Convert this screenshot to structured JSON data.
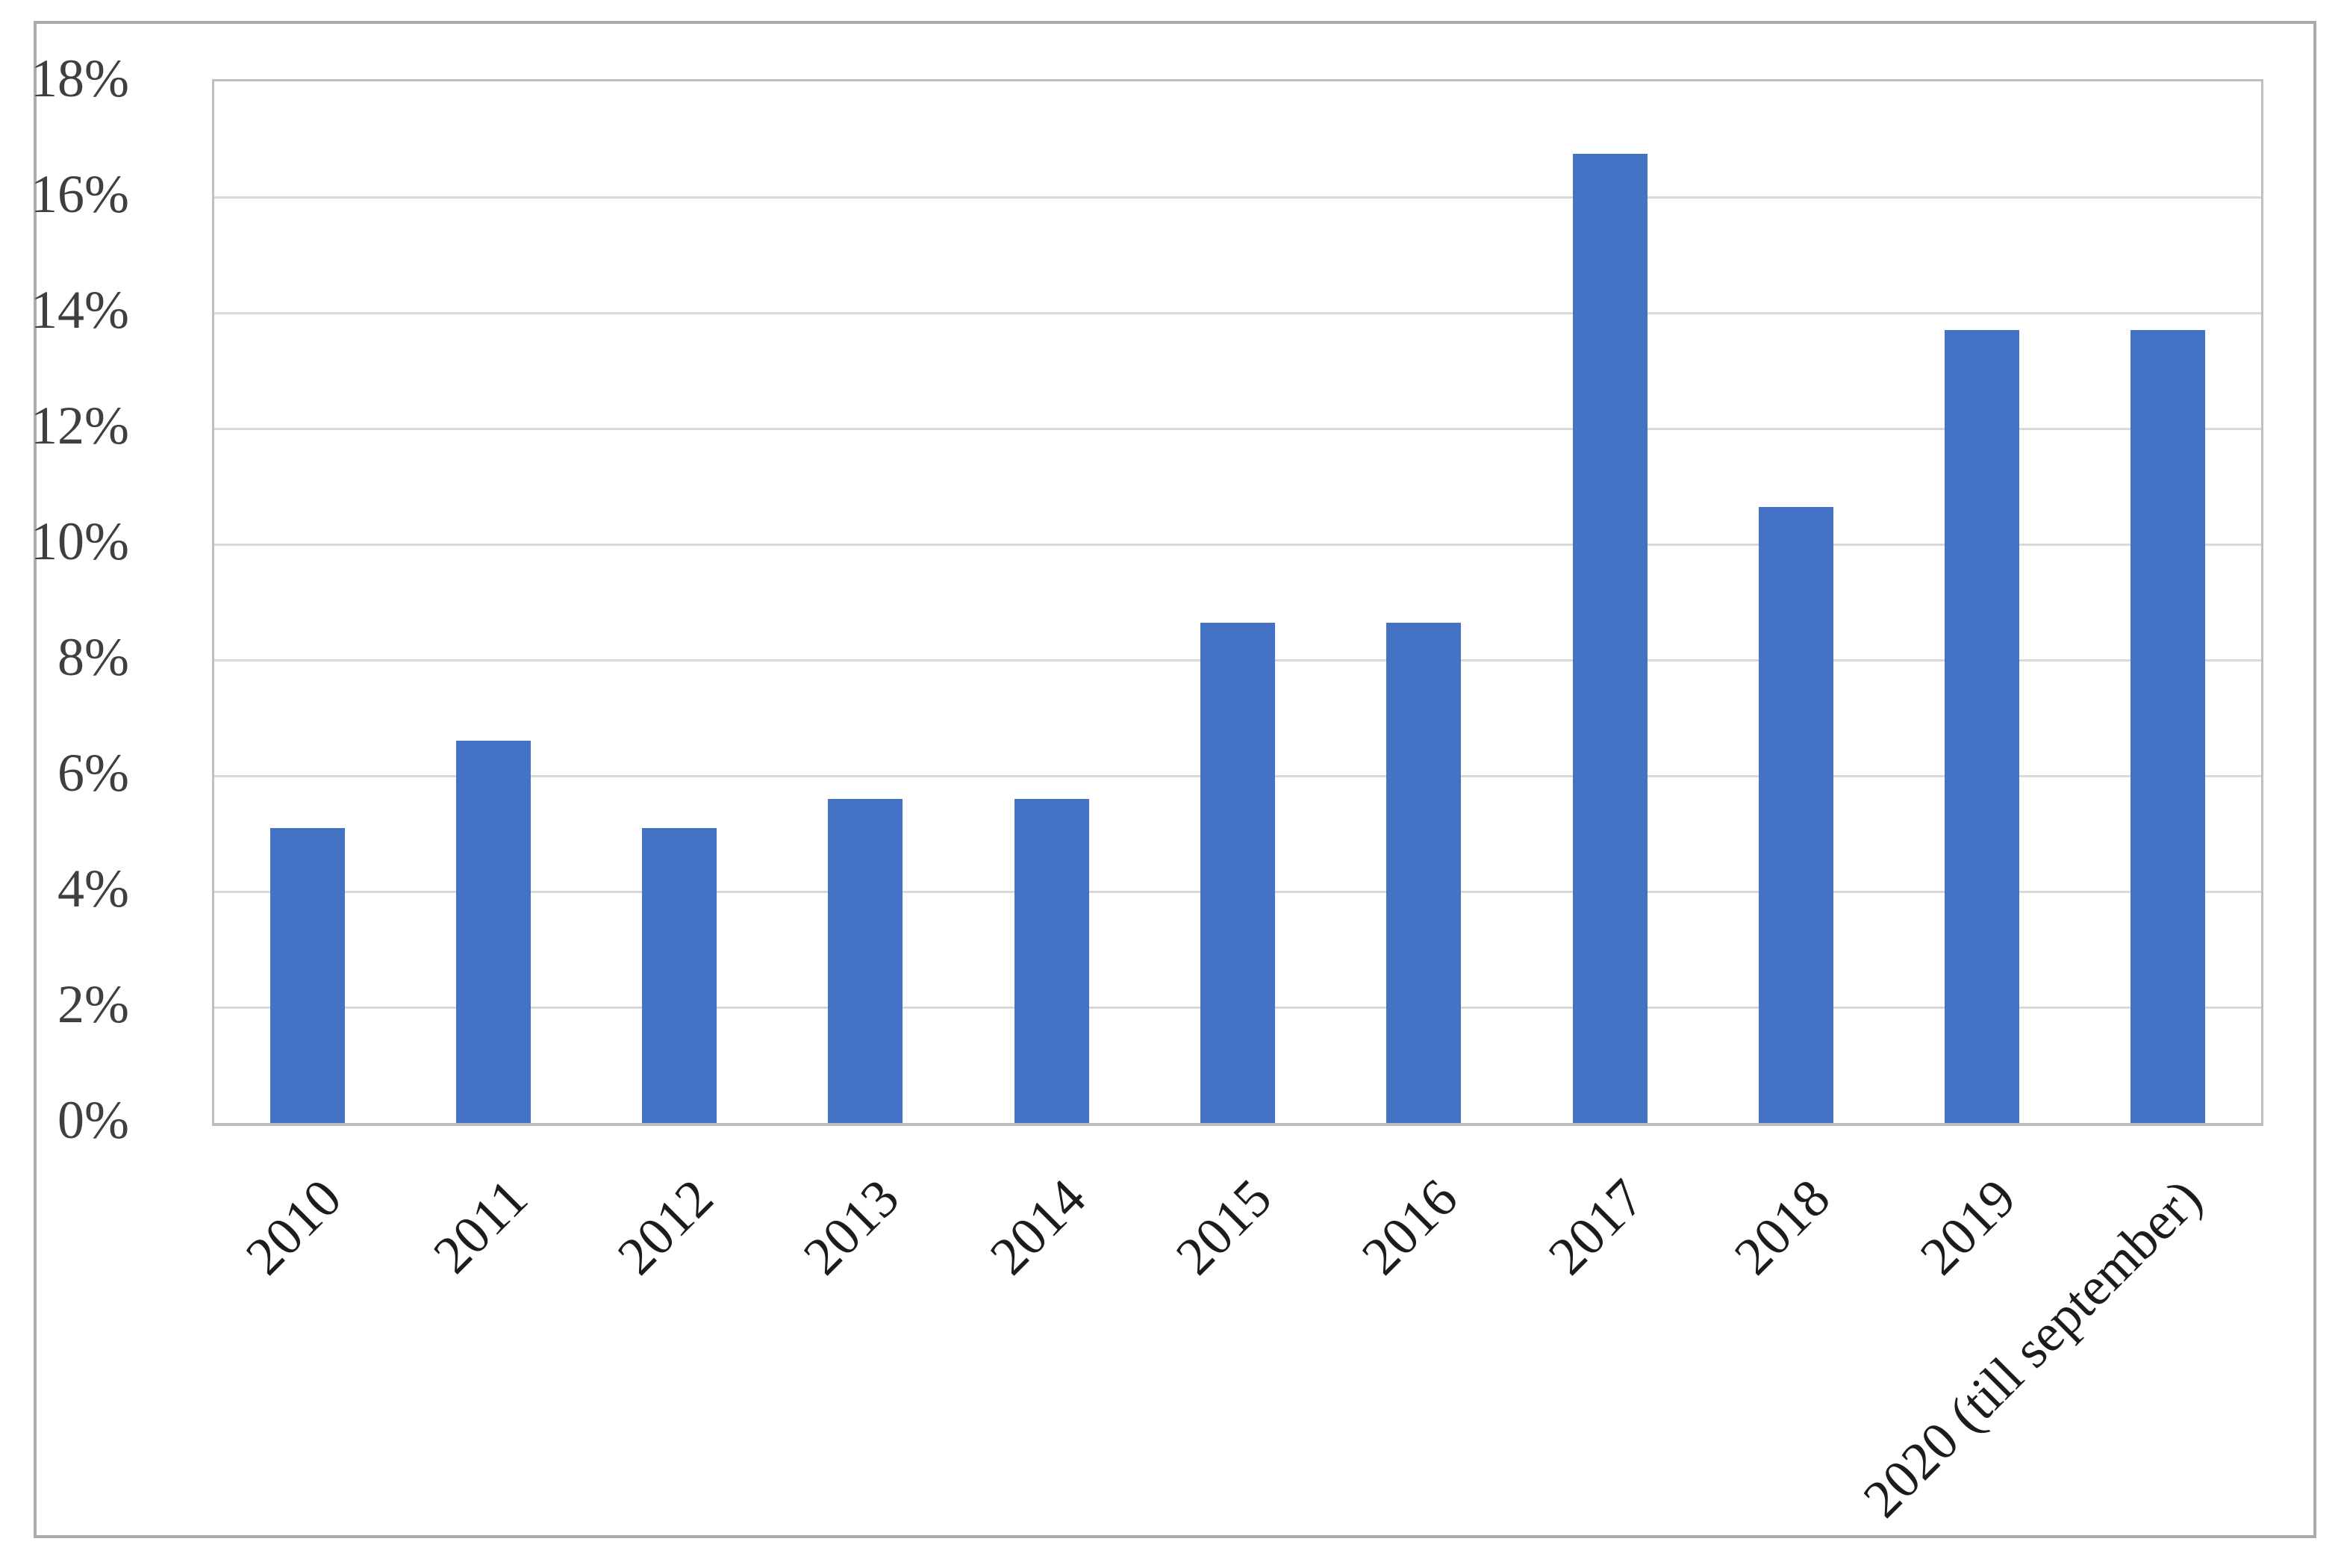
{
  "chart_data": {
    "type": "bar",
    "title": "",
    "xlabel": "",
    "ylabel": "",
    "categories": [
      "2010",
      "2011",
      "2012",
      "2013",
      "2014",
      "2015",
      "2016",
      "2017",
      "2018",
      "2019",
      "2020 (till september)"
    ],
    "values": [
      5.1,
      6.6,
      5.1,
      5.6,
      5.6,
      8.65,
      8.65,
      16.75,
      10.65,
      13.7,
      13.7
    ],
    "value_unit": "%",
    "ylim": [
      0,
      18
    ],
    "ytick_step": 2,
    "ytick_labels": [
      "0%",
      "2%",
      "4%",
      "6%",
      "8%",
      "10%",
      "12%",
      "14%",
      "16%",
      "18%"
    ],
    "xtick_rotation_deg": 45,
    "grid": true,
    "legend": "none",
    "colors": {
      "bar_fill": "#4472C4",
      "gridline": "#D9D9D9",
      "plot_border": "#BFBFBF",
      "figure_border": "#ABABAB",
      "ytick_text": "#3F3F3F",
      "xtick_text": "#1C1C1C",
      "background": "#FFFFFF"
    },
    "layout_hints": {
      "bar_gap_ratio": 0.6,
      "gridlines_at": [
        2,
        4,
        6,
        8,
        10,
        12,
        14,
        16
      ],
      "top_border_is_18pct_line": true
    }
  }
}
